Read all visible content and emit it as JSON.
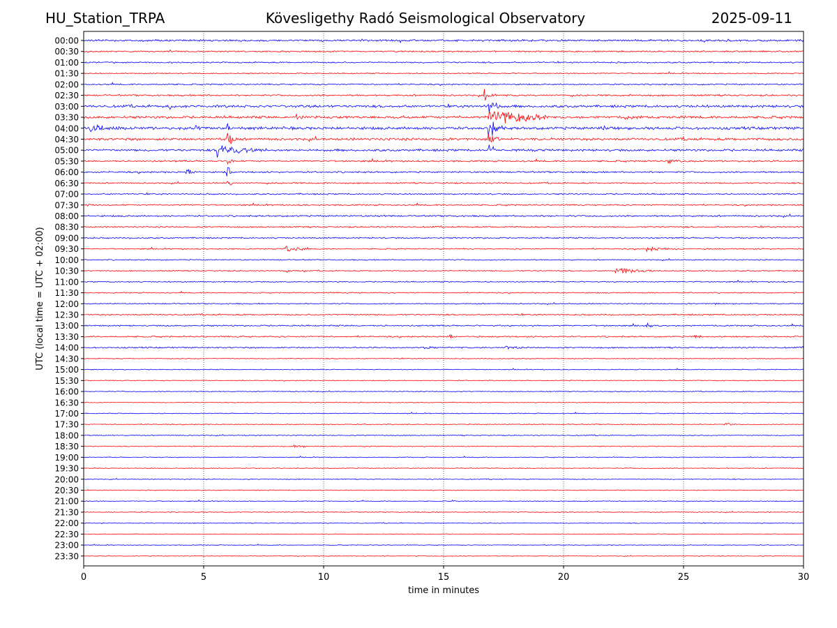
{
  "header": {
    "station": "HU_Station_TRPA",
    "title": "Kövesligethy Radó Seismological Observatory",
    "date": "2025-09-11"
  },
  "chart_data": {
    "type": "line",
    "title": "Kövesligethy Radó Seismological Observatory",
    "xlabel": "time in minutes",
    "ylabel": "UTC (local time = UTC + 02:00)",
    "xlim": [
      0,
      30
    ],
    "xticks": [
      0,
      5,
      10,
      15,
      20,
      25,
      30
    ],
    "x_gridlines": [
      5,
      10,
      15,
      20,
      25
    ],
    "grid": "vertical dotted",
    "row_labels": [
      "00:00",
      "00:30",
      "01:00",
      "01:30",
      "02:00",
      "02:30",
      "03:00",
      "03:30",
      "04:00",
      "04:30",
      "05:00",
      "05:30",
      "06:00",
      "06:30",
      "07:00",
      "07:30",
      "08:00",
      "08:30",
      "09:00",
      "09:30",
      "10:00",
      "10:30",
      "11:00",
      "11:30",
      "12:00",
      "12:30",
      "13:00",
      "13:30",
      "14:00",
      "14:30",
      "15:00",
      "15:30",
      "16:00",
      "16:30",
      "17:00",
      "17:30",
      "18:00",
      "18:30",
      "19:00",
      "19:30",
      "20:00",
      "20:30",
      "21:00",
      "21:30",
      "22:00",
      "22:30",
      "23:00",
      "23:30"
    ],
    "trace_colors": [
      "#0000ff",
      "#ff0000"
    ],
    "noise": [
      0.35,
      0.25,
      0.25,
      0.2,
      0.25,
      0.3,
      0.45,
      0.45,
      0.5,
      0.45,
      0.4,
      0.3,
      0.3,
      0.25,
      0.25,
      0.25,
      0.3,
      0.25,
      0.25,
      0.2,
      0.2,
      0.2,
      0.2,
      0.2,
      0.2,
      0.25,
      0.25,
      0.25,
      0.25,
      0.15,
      0.15,
      0.15,
      0.15,
      0.15,
      0.15,
      0.15,
      0.15,
      0.15,
      0.15,
      0.15,
      0.15,
      0.15,
      0.15,
      0.15,
      0.15,
      0.12,
      0.12,
      0.12
    ],
    "events": [
      {
        "row": 5,
        "t": 16.7,
        "amp": 2.5,
        "dur": 0.5
      },
      {
        "row": 6,
        "t": 16.9,
        "amp": 3.0,
        "dur": 0.5
      },
      {
        "row": 6,
        "t": 3.6,
        "amp": 1.0,
        "dur": 0.3
      },
      {
        "row": 7,
        "t": 16.9,
        "amp": 4.0,
        "dur": 2.5
      },
      {
        "row": 7,
        "t": 8.9,
        "amp": 0.8,
        "dur": 0.2
      },
      {
        "row": 7,
        "t": 22.6,
        "amp": 1.0,
        "dur": 0.5
      },
      {
        "row": 8,
        "t": 16.9,
        "amp": 3.5,
        "dur": 0.5
      },
      {
        "row": 8,
        "t": 0.3,
        "amp": 1.3,
        "dur": 1.2
      },
      {
        "row": 8,
        "t": 4.7,
        "amp": 0.9,
        "dur": 0.3
      },
      {
        "row": 8,
        "t": 6.0,
        "amp": 2.0,
        "dur": 0.3
      },
      {
        "row": 8,
        "t": 21.6,
        "amp": 1.0,
        "dur": 0.5
      },
      {
        "row": 9,
        "t": 6.0,
        "amp": 2.5,
        "dur": 0.5
      },
      {
        "row": 9,
        "t": 16.9,
        "amp": 2.0,
        "dur": 0.5
      },
      {
        "row": 10,
        "t": 5.6,
        "amp": 2.2,
        "dur": 2.0
      },
      {
        "row": 10,
        "t": 16.9,
        "amp": 1.5,
        "dur": 0.3
      },
      {
        "row": 11,
        "t": 6.0,
        "amp": 1.8,
        "dur": 0.3
      },
      {
        "row": 11,
        "t": 24.4,
        "amp": 0.6,
        "dur": 0.6
      },
      {
        "row": 12,
        "t": 4.3,
        "amp": 1.2,
        "dur": 0.4
      },
      {
        "row": 12,
        "t": 6.0,
        "amp": 2.5,
        "dur": 0.2
      },
      {
        "row": 13,
        "t": 6.0,
        "amp": 2.0,
        "dur": 0.2
      },
      {
        "row": 15,
        "t": 0.1,
        "amp": 0.5,
        "dur": 0.5
      },
      {
        "row": 19,
        "t": 8.4,
        "amp": 1.3,
        "dur": 1.0
      },
      {
        "row": 19,
        "t": 23.5,
        "amp": 0.7,
        "dur": 1.2
      },
      {
        "row": 21,
        "t": 22.2,
        "amp": 1.5,
        "dur": 1.5
      },
      {
        "row": 21,
        "t": 8.5,
        "amp": 0.6,
        "dur": 0.1
      },
      {
        "row": 24,
        "t": 26.3,
        "amp": 0.4,
        "dur": 0.4
      },
      {
        "row": 26,
        "t": 23.5,
        "amp": 0.8,
        "dur": 0.5
      },
      {
        "row": 27,
        "t": 25.5,
        "amp": 0.6,
        "dur": 0.4
      },
      {
        "row": 27,
        "t": 15.3,
        "amp": 0.6,
        "dur": 0.2
      },
      {
        "row": 28,
        "t": 14.2,
        "amp": 0.5,
        "dur": 0.3
      },
      {
        "row": 28,
        "t": 17.6,
        "amp": 0.7,
        "dur": 0.6
      },
      {
        "row": 35,
        "t": 26.7,
        "amp": 0.8,
        "dur": 0.5
      },
      {
        "row": 37,
        "t": 8.8,
        "amp": 0.7,
        "dur": 0.5
      },
      {
        "row": 42,
        "t": 15.4,
        "amp": 0.3,
        "dur": 0.3
      }
    ]
  }
}
